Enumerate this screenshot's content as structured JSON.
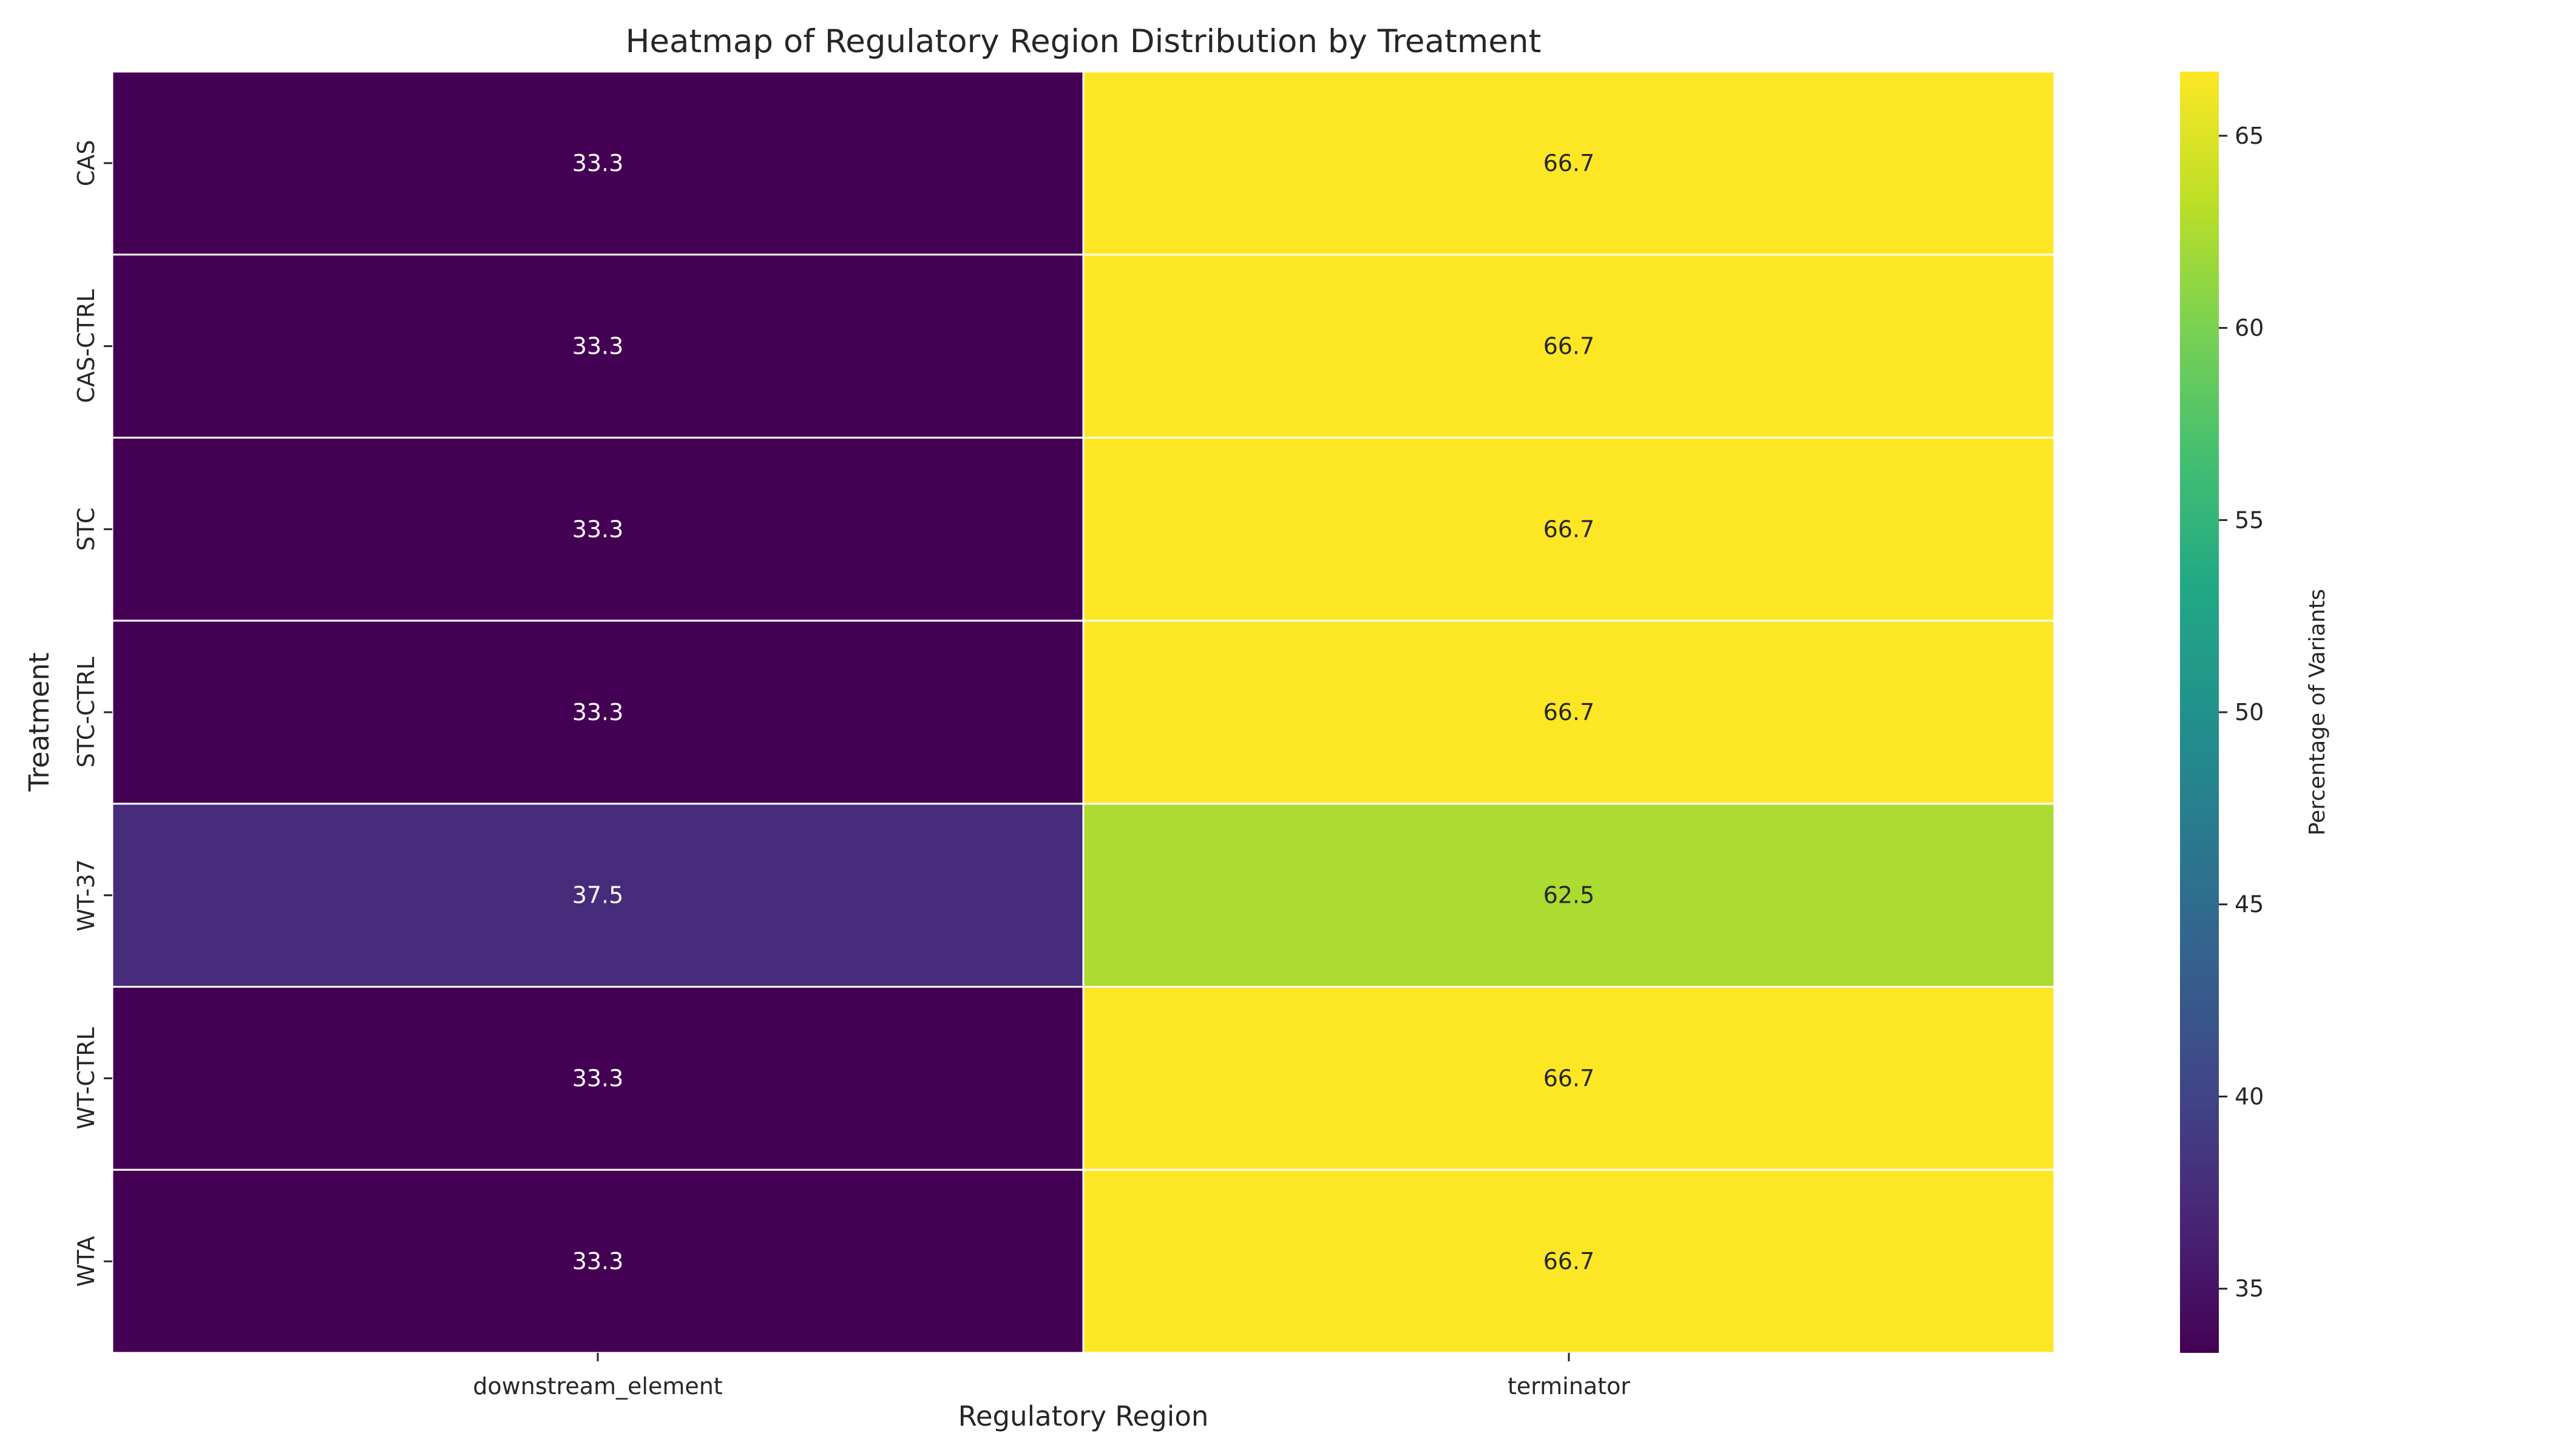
{
  "chart_data": {
    "type": "heatmap",
    "title": "Heatmap of Regulatory Region Distribution by Treatment",
    "xlabel": "Regulatory Region",
    "ylabel": "Treatment",
    "columns": [
      "downstream_element",
      "terminator"
    ],
    "rows": [
      "CAS",
      "CAS-CTRL",
      "STC",
      "STC-CTRL",
      "WT-37",
      "WT-CTRL",
      "WTA"
    ],
    "values": [
      [
        33.3,
        66.7
      ],
      [
        33.3,
        66.7
      ],
      [
        33.3,
        66.7
      ],
      [
        33.3,
        66.7
      ],
      [
        37.5,
        62.5
      ],
      [
        33.3,
        66.7
      ],
      [
        33.3,
        66.7
      ]
    ],
    "annotations": [
      [
        "33.3",
        "66.7"
      ],
      [
        "33.3",
        "66.7"
      ],
      [
        "33.3",
        "66.7"
      ],
      [
        "33.3",
        "66.7"
      ],
      [
        "37.5",
        "62.5"
      ],
      [
        "33.3",
        "66.7"
      ],
      [
        "33.3",
        "66.7"
      ]
    ],
    "colormap": "viridis",
    "colorbar": {
      "label": "Percentage of Variants",
      "range": [
        33.33,
        66.67
      ],
      "ticks": [
        "35",
        "40",
        "45",
        "50",
        "55",
        "60",
        "65"
      ]
    },
    "grid": false,
    "cell_border_color": "#ffffff"
  }
}
